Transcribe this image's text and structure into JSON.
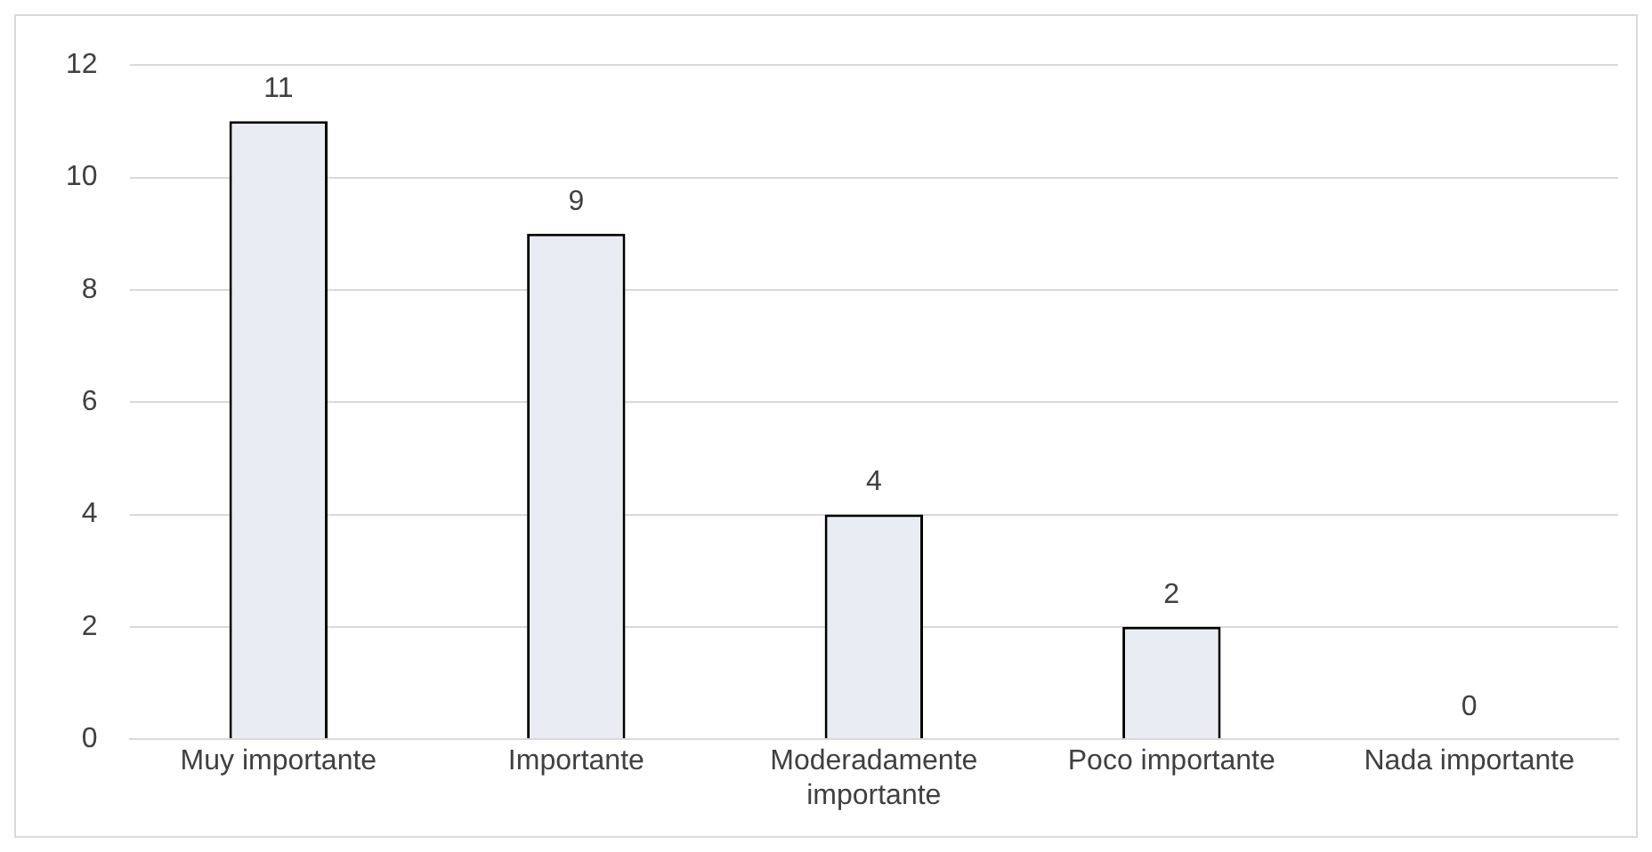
{
  "chart_data": {
    "type": "bar",
    "categories": [
      "Muy importante",
      "Importante",
      "Moderadamente importante",
      "Poco importante",
      "Nada importante"
    ],
    "values": [
      11,
      9,
      4,
      2,
      0
    ],
    "color": "#e9edf3",
    "ylim": [
      0,
      12
    ],
    "yticks": [
      0,
      2,
      4,
      6,
      8,
      10,
      12
    ],
    "grid": "y",
    "data_labels": true
  }
}
